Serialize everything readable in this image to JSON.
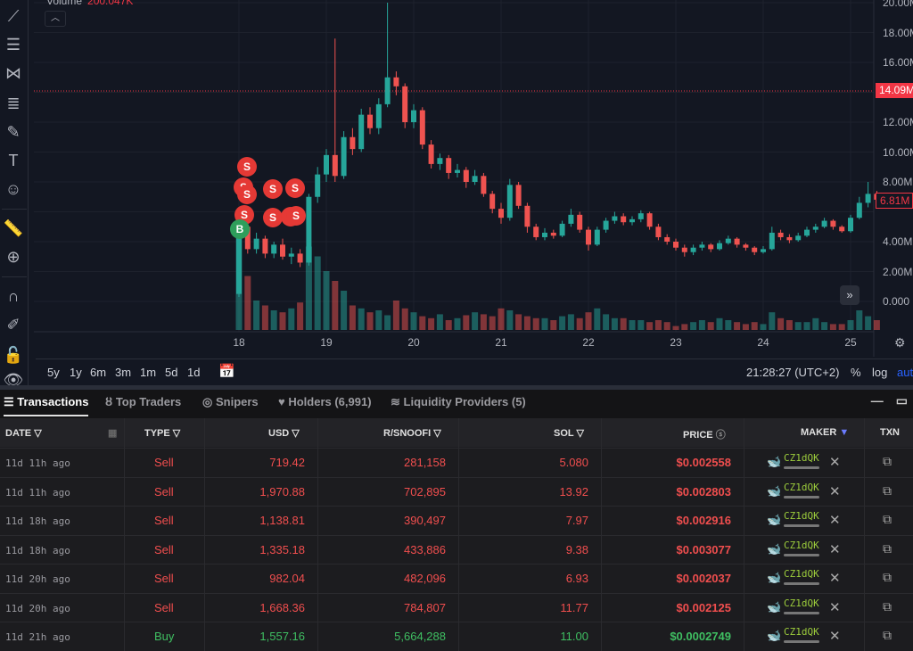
{
  "chart": {
    "volume_label": "Volume",
    "volume_value": "200.047K",
    "price_line_label": "14.09M",
    "last_price_label": "6.81M",
    "colors": {
      "up": "#26a69a",
      "down": "#ef5350",
      "background": "#131722"
    }
  },
  "chart_data": {
    "type": "candlestick",
    "y_ticks": [
      "20.00M",
      "18.00M",
      "16.00M",
      "12.00M",
      "10.00M",
      "8.00M",
      "4.00M",
      "2.00M",
      "0.000"
    ],
    "ylim": [
      0,
      20
    ],
    "x_ticks": [
      "18",
      "19",
      "20",
      "21",
      "22",
      "23",
      "24",
      "25"
    ],
    "candles": [
      [
        18.0,
        0.5,
        5.8,
        0.3,
        5.0
      ],
      [
        18.1,
        5.0,
        5.3,
        3.2,
        3.5
      ],
      [
        18.2,
        3.5,
        4.6,
        3.2,
        4.2
      ],
      [
        18.3,
        4.2,
        4.4,
        2.9,
        3.2
      ],
      [
        18.4,
        3.2,
        4.0,
        2.9,
        3.8
      ],
      [
        18.5,
        3.8,
        4.2,
        2.8,
        3.0
      ],
      [
        18.6,
        3.0,
        3.6,
        2.5,
        3.2
      ],
      [
        18.7,
        3.2,
        3.5,
        2.3,
        2.6
      ],
      [
        18.8,
        2.6,
        7.2,
        2.4,
        7.0
      ],
      [
        18.9,
        7.0,
        9.0,
        6.6,
        8.5
      ],
      [
        19.0,
        8.5,
        10.2,
        8.0,
        9.8
      ],
      [
        19.1,
        9.8,
        17.6,
        8.0,
        8.4
      ],
      [
        19.2,
        8.4,
        11.4,
        8.2,
        11.0
      ],
      [
        19.3,
        11.0,
        11.6,
        9.8,
        10.2
      ],
      [
        19.4,
        10.2,
        12.9,
        10.0,
        12.5
      ],
      [
        19.5,
        12.5,
        13.0,
        11.2,
        11.6
      ],
      [
        19.6,
        11.6,
        13.6,
        11.2,
        13.2
      ],
      [
        19.7,
        13.2,
        20.0,
        13.0,
        15.0
      ],
      [
        19.8,
        15.0,
        15.4,
        13.8,
        14.4
      ],
      [
        19.9,
        14.4,
        14.6,
        11.6,
        12.0
      ],
      [
        20.0,
        12.0,
        13.2,
        11.6,
        12.8
      ],
      [
        20.1,
        12.8,
        13.0,
        10.2,
        10.5
      ],
      [
        20.2,
        10.5,
        10.8,
        8.9,
        9.2
      ],
      [
        20.3,
        9.2,
        9.9,
        8.8,
        9.6
      ],
      [
        20.4,
        9.6,
        9.8,
        8.2,
        8.6
      ],
      [
        20.5,
        8.6,
        9.2,
        8.3,
        8.8
      ],
      [
        20.6,
        8.8,
        9.0,
        7.6,
        8.0
      ],
      [
        20.7,
        8.0,
        8.8,
        7.8,
        8.4
      ],
      [
        20.8,
        8.4,
        8.6,
        7.0,
        7.2
      ],
      [
        20.9,
        7.2,
        7.4,
        5.9,
        6.2
      ],
      [
        21.0,
        6.2,
        6.6,
        5.2,
        5.6
      ],
      [
        21.1,
        5.6,
        8.2,
        5.4,
        7.8
      ],
      [
        21.2,
        7.8,
        8.0,
        6.2,
        6.4
      ],
      [
        21.3,
        6.4,
        6.6,
        4.6,
        5.0
      ],
      [
        21.4,
        5.0,
        5.2,
        4.1,
        4.3
      ],
      [
        21.5,
        4.3,
        4.9,
        4.1,
        4.6
      ],
      [
        21.6,
        4.6,
        4.8,
        4.2,
        4.4
      ],
      [
        21.7,
        4.4,
        5.4,
        4.3,
        5.2
      ],
      [
        21.8,
        5.2,
        6.2,
        5.0,
        5.8
      ],
      [
        21.9,
        5.8,
        6.0,
        4.6,
        4.8
      ],
      [
        22.0,
        4.8,
        5.0,
        3.4,
        3.8
      ],
      [
        22.1,
        3.8,
        5.0,
        3.7,
        4.8
      ],
      [
        22.2,
        4.8,
        5.6,
        4.6,
        5.4
      ],
      [
        22.3,
        5.4,
        6.0,
        5.2,
        5.7
      ],
      [
        22.4,
        5.7,
        5.9,
        5.1,
        5.3
      ],
      [
        22.5,
        5.3,
        5.7,
        5.1,
        5.5
      ],
      [
        22.6,
        5.5,
        6.1,
        5.3,
        5.9
      ],
      [
        22.7,
        5.9,
        6.0,
        4.8,
        5.0
      ],
      [
        22.8,
        5.0,
        5.2,
        4.1,
        4.3
      ],
      [
        22.9,
        4.3,
        4.5,
        3.8,
        4.0
      ],
      [
        23.0,
        4.0,
        4.2,
        3.4,
        3.6
      ],
      [
        23.1,
        3.6,
        3.8,
        3.0,
        3.3
      ],
      [
        23.2,
        3.3,
        3.8,
        3.1,
        3.6
      ],
      [
        23.3,
        3.6,
        4.0,
        3.4,
        3.8
      ],
      [
        23.4,
        3.8,
        3.9,
        3.3,
        3.5
      ],
      [
        23.5,
        3.5,
        4.1,
        3.4,
        3.9
      ],
      [
        23.6,
        3.9,
        4.4,
        3.8,
        4.2
      ],
      [
        23.7,
        4.2,
        4.3,
        3.6,
        3.8
      ],
      [
        23.8,
        3.8,
        3.9,
        3.4,
        3.6
      ],
      [
        23.9,
        3.6,
        3.7,
        3.1,
        3.3
      ],
      [
        24.0,
        3.3,
        3.7,
        3.2,
        3.5
      ],
      [
        24.1,
        3.5,
        5.0,
        3.4,
        4.6
      ],
      [
        24.2,
        4.6,
        4.8,
        4.1,
        4.3
      ],
      [
        24.3,
        4.3,
        4.5,
        3.9,
        4.1
      ],
      [
        24.4,
        4.1,
        4.6,
        4.0,
        4.4
      ],
      [
        24.5,
        4.4,
        5.0,
        4.3,
        4.8
      ],
      [
        24.6,
        4.8,
        5.2,
        4.6,
        5.0
      ],
      [
        24.7,
        5.0,
        5.6,
        4.9,
        5.4
      ],
      [
        24.8,
        5.4,
        5.5,
        4.8,
        5.0
      ],
      [
        24.9,
        5.0,
        5.1,
        4.6,
        4.7
      ],
      [
        25.0,
        4.7,
        5.8,
        4.6,
        5.6
      ],
      [
        25.1,
        5.6,
        7.0,
        5.5,
        6.6
      ],
      [
        25.2,
        6.6,
        8.0,
        6.3,
        7.2
      ],
      [
        25.3,
        7.2,
        7.4,
        6.4,
        6.81
      ]
    ],
    "volume": [
      100,
      55,
      30,
      25,
      20,
      18,
      22,
      28,
      85,
      75,
      60,
      50,
      40,
      25,
      22,
      18,
      20,
      15,
      30,
      22,
      18,
      14,
      12,
      16,
      10,
      12,
      15,
      18,
      16,
      14,
      22,
      20,
      16,
      14,
      12,
      12,
      10,
      14,
      16,
      12,
      18,
      22,
      16,
      12,
      12,
      10,
      10,
      8,
      10,
      8,
      4,
      6,
      8,
      10,
      8,
      12,
      10,
      8,
      6,
      8,
      6,
      18,
      12,
      10,
      8,
      8,
      12,
      8,
      6,
      6,
      10,
      20,
      14,
      10
    ],
    "trade_markers": [
      "S",
      "S",
      "S",
      "S",
      "S",
      "S",
      "S",
      "S",
      "S",
      "B"
    ]
  },
  "toolbar": {
    "icons": [
      "trend-line",
      "horizontal-lines",
      "pattern",
      "fib",
      "brush",
      "text",
      "emoji",
      "ruler",
      "zoom-in",
      "magnet",
      "lock-drawing",
      "lock",
      "eye"
    ]
  },
  "bottom_bar": {
    "ranges": [
      "5y",
      "1y",
      "6m",
      "3m",
      "1m",
      "5d",
      "1d"
    ],
    "clock": "21:28:27 (UTC+2)",
    "percent": "%",
    "log": "log",
    "auto": "auto"
  },
  "tabs": [
    {
      "label": "Transactions",
      "icon": "list"
    },
    {
      "label": "Top Traders",
      "icon": "medal"
    },
    {
      "label": "Snipers",
      "icon": "target"
    },
    {
      "label": "Holders (6,991)",
      "icon": "heart"
    },
    {
      "label": "Liquidity Providers (5)",
      "icon": "waves"
    }
  ],
  "table": {
    "headers": [
      "DATE",
      "TYPE",
      "USD",
      "R/SNOOFI",
      "SOL",
      "PRICE",
      "MAKER",
      "TXN"
    ],
    "rows": [
      {
        "date": "11d 11h ago",
        "type": "Sell",
        "usd": "719.42",
        "token": "281,158",
        "sol": "5.080",
        "price": "$0.002558",
        "maker": "CZ1dQK"
      },
      {
        "date": "11d 11h ago",
        "type": "Sell",
        "usd": "1,970.88",
        "token": "702,895",
        "sol": "13.92",
        "price": "$0.002803",
        "maker": "CZ1dQK"
      },
      {
        "date": "11d 18h ago",
        "type": "Sell",
        "usd": "1,138.81",
        "token": "390,497",
        "sol": "7.97",
        "price": "$0.002916",
        "maker": "CZ1dQK"
      },
      {
        "date": "11d 18h ago",
        "type": "Sell",
        "usd": "1,335.18",
        "token": "433,886",
        "sol": "9.38",
        "price": "$0.003077",
        "maker": "CZ1dQK"
      },
      {
        "date": "11d 20h ago",
        "type": "Sell",
        "usd": "982.04",
        "token": "482,096",
        "sol": "6.93",
        "price": "$0.002037",
        "maker": "CZ1dQK"
      },
      {
        "date": "11d 20h ago",
        "type": "Sell",
        "usd": "1,668.36",
        "token": "784,807",
        "sol": "11.77",
        "price": "$0.002125",
        "maker": "CZ1dQK"
      },
      {
        "date": "11d 21h ago",
        "type": "Buy",
        "usd": "1,557.16",
        "token": "5,664,288",
        "sol": "11.00",
        "price": "$0.0002749",
        "maker": "CZ1dQK"
      }
    ]
  }
}
